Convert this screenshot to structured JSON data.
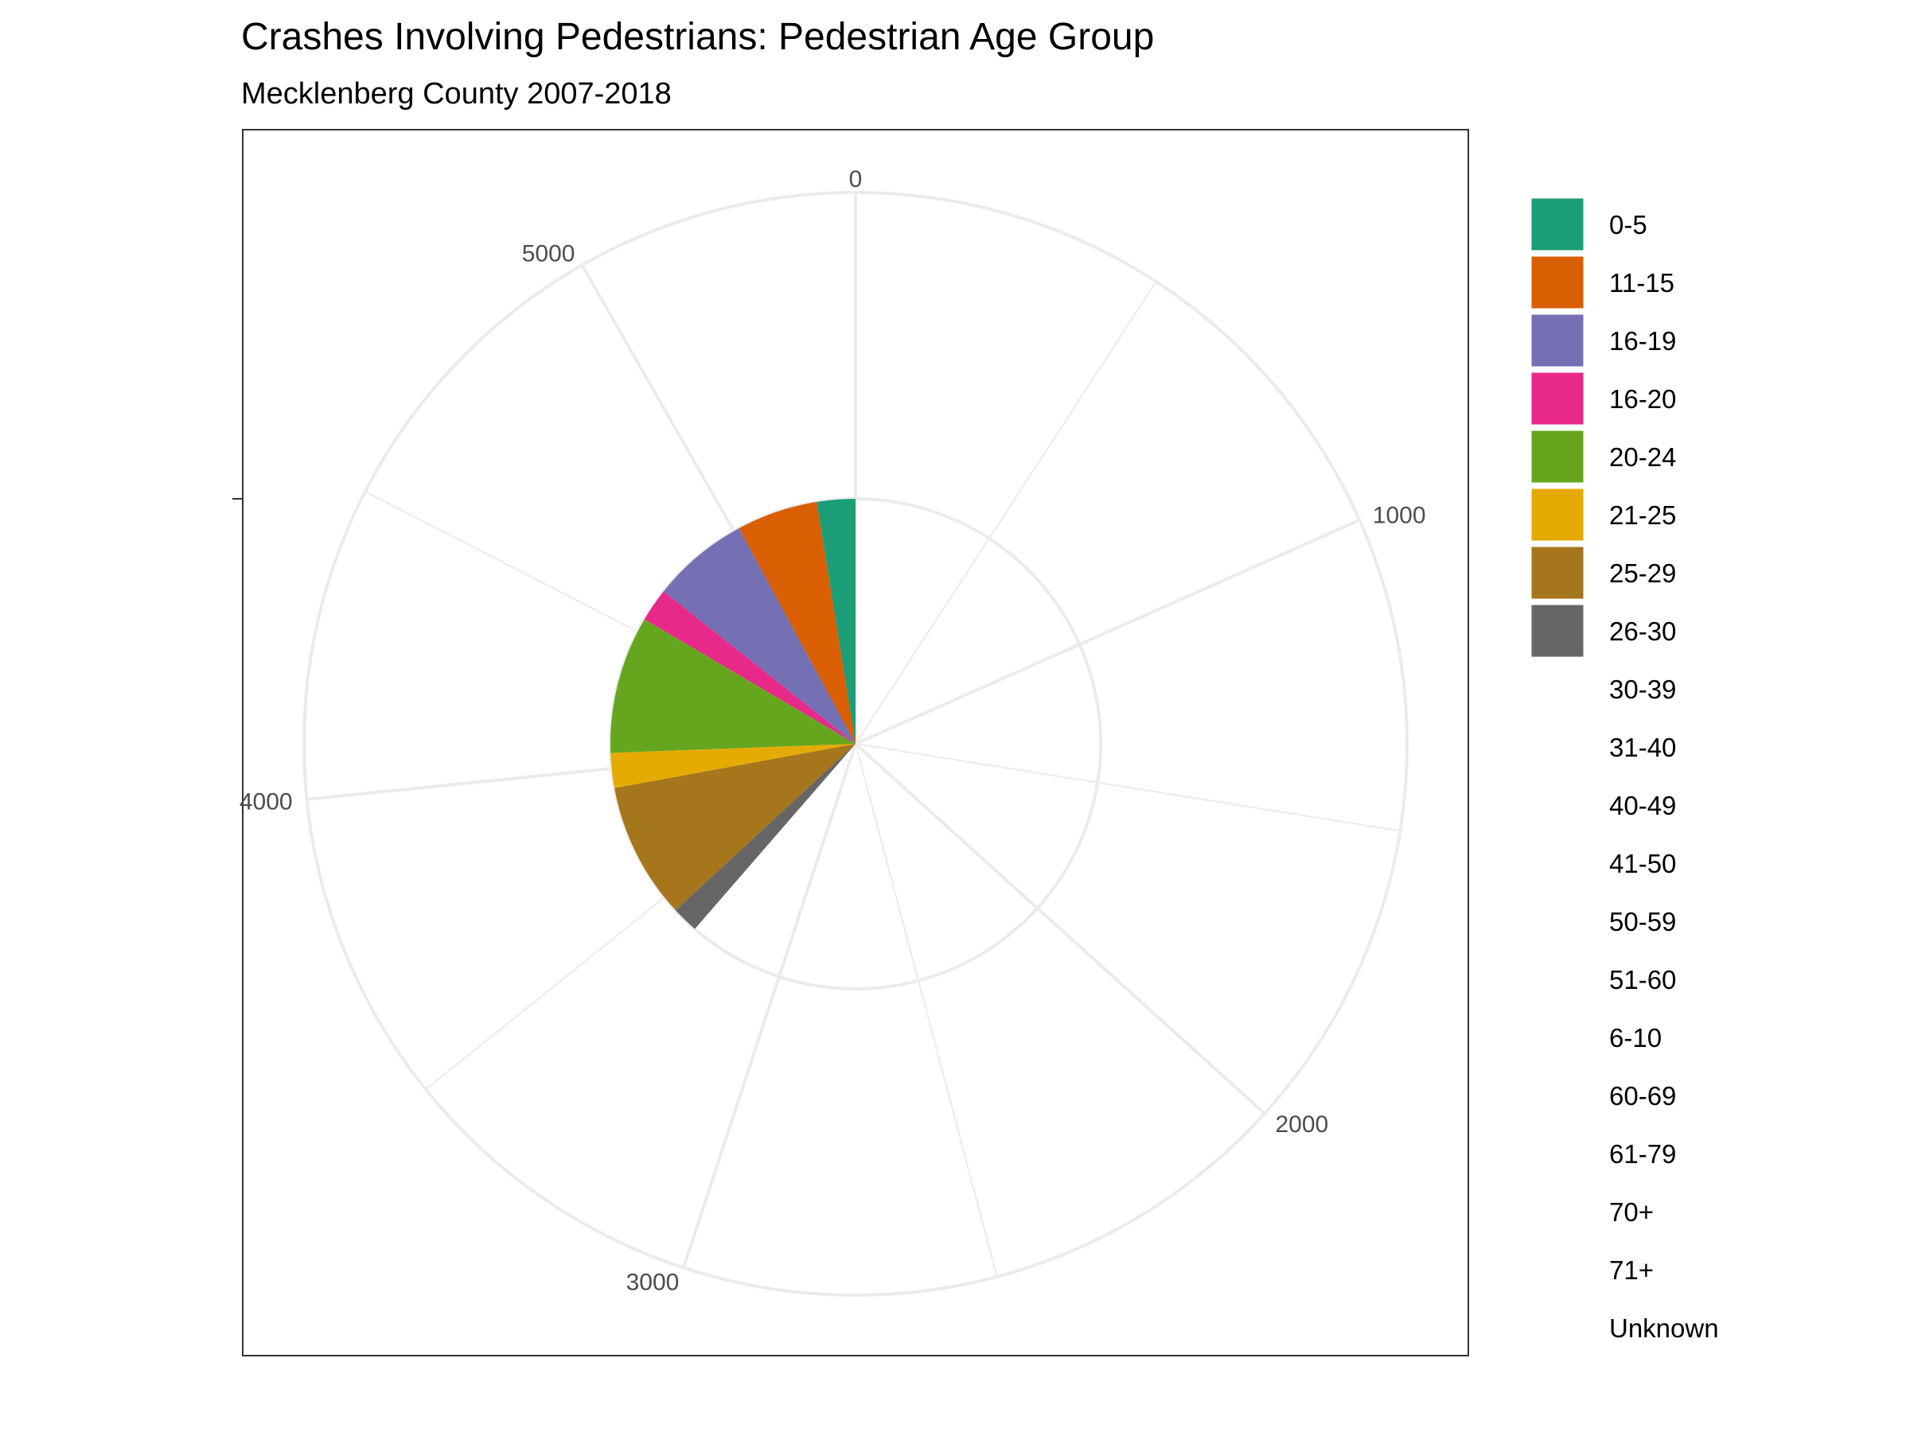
{
  "chart_data": {
    "type": "pie",
    "coord": "polar",
    "title": "Crashes Involving Pedestrians: Pedestrian Age Group",
    "subtitle": "Mecklenberg County 2007-2018",
    "total": 5450,
    "angle_ticks": [
      0,
      1000,
      2000,
      3000,
      4000,
      5000
    ],
    "grid": true,
    "legend_position": "right",
    "categories": [
      "0-5",
      "11-15",
      "16-19",
      "16-20",
      "20-24",
      "21-25",
      "25-29",
      "26-30",
      "30-39",
      "31-40",
      "40-49",
      "41-50",
      "50-59",
      "51-60",
      "6-10",
      "60-69",
      "61-79",
      "70+",
      "71+",
      "Unknown"
    ],
    "slices": [
      {
        "label": "0-5",
        "start": 5312,
        "end": 5450,
        "radius": 4.0,
        "color": "#1b9e77"
      },
      {
        "label": "11-15",
        "start": 5020,
        "end": 5312,
        "radius": 4.0,
        "color": "#d95f02"
      },
      {
        "label": "16-19",
        "start": 4670,
        "end": 5020,
        "radius": 4.0,
        "color": "#7570b3"
      },
      {
        "label": "16-20",
        "start": 4550,
        "end": 4670,
        "radius": 4.0,
        "color": "#e7298a"
      },
      {
        "label": "20-24",
        "start": 4055,
        "end": 4550,
        "radius": 4.0,
        "color": "#66a61e"
      },
      {
        "label": "21-25",
        "start": 3930,
        "end": 4055,
        "radius": 4.0,
        "color": "#e6ab02"
      },
      {
        "label": "25-29",
        "start": 3440,
        "end": 3930,
        "radius": 4.0,
        "color": "#a6761d"
      },
      {
        "label": "26-30",
        "start": 3345,
        "end": 3440,
        "radius": 4.0,
        "color": "#666666"
      }
    ],
    "legend_colors": [
      "#1b9e77",
      "#d95f02",
      "#7570b3",
      "#e7298a",
      "#66a61e",
      "#e6ab02",
      "#a6761d",
      "#666666",
      "",
      "",
      "",
      "",
      "",
      "",
      "",
      "",
      "",
      "",
      "",
      ""
    ]
  }
}
